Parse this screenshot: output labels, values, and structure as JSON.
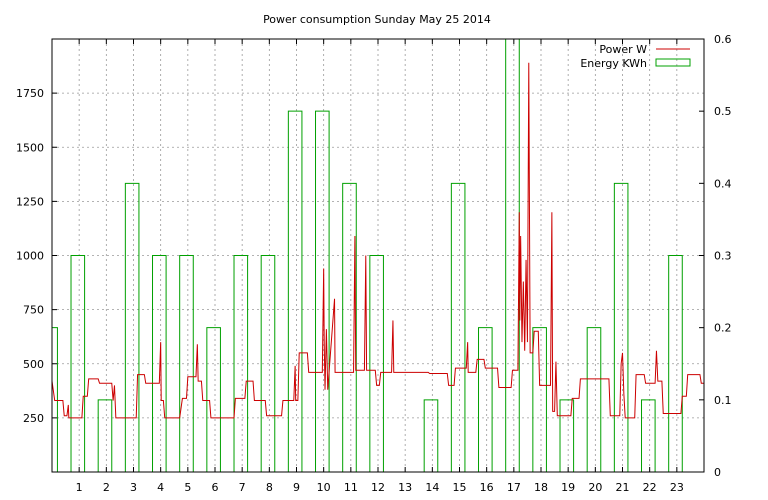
{
  "chart_data": {
    "type": "line",
    "title": "Power consumption Sunday May 25 2014",
    "xlabel": "",
    "ylabel": "",
    "xlim": [
      0,
      24
    ],
    "ylim": [
      0,
      2000
    ],
    "y2lim": [
      0,
      0.6
    ],
    "x_ticks": [
      1,
      2,
      3,
      4,
      5,
      6,
      7,
      8,
      9,
      10,
      11,
      12,
      13,
      14,
      15,
      16,
      17,
      18,
      19,
      20,
      21,
      22,
      23
    ],
    "y_ticks": [
      250,
      500,
      750,
      1000,
      1250,
      1500,
      1750
    ],
    "y2_ticks": [
      0,
      0.1,
      0.2,
      0.3,
      0.4,
      0.5,
      0.6
    ],
    "grid": true,
    "legend_position": "top-right",
    "series": [
      {
        "name": "Power W",
        "color": "#cc0000",
        "axis": "left",
        "style": "line",
        "points": [
          [
            0,
            420
          ],
          [
            0.1,
            330
          ],
          [
            0.4,
            330
          ],
          [
            0.45,
            260
          ],
          [
            0.55,
            260
          ],
          [
            0.6,
            310
          ],
          [
            0.62,
            250
          ],
          [
            1.1,
            250
          ],
          [
            1.15,
            350
          ],
          [
            1.3,
            350
          ],
          [
            1.35,
            430
          ],
          [
            1.7,
            430
          ],
          [
            1.75,
            410
          ],
          [
            2.2,
            410
          ],
          [
            2.25,
            330
          ],
          [
            2.3,
            400
          ],
          [
            2.35,
            250
          ],
          [
            3.1,
            250
          ],
          [
            3.15,
            450
          ],
          [
            3.4,
            450
          ],
          [
            3.45,
            410
          ],
          [
            3.95,
            410
          ],
          [
            4.0,
            600
          ],
          [
            4.02,
            330
          ],
          [
            4.1,
            330
          ],
          [
            4.15,
            250
          ],
          [
            4.7,
            250
          ],
          [
            4.8,
            340
          ],
          [
            4.95,
            340
          ],
          [
            5.0,
            440
          ],
          [
            5.3,
            440
          ],
          [
            5.35,
            590
          ],
          [
            5.38,
            420
          ],
          [
            5.5,
            420
          ],
          [
            5.55,
            330
          ],
          [
            5.8,
            330
          ],
          [
            5.85,
            250
          ],
          [
            6.7,
            250
          ],
          [
            6.75,
            340
          ],
          [
            7.1,
            340
          ],
          [
            7.15,
            420
          ],
          [
            7.4,
            420
          ],
          [
            7.45,
            330
          ],
          [
            7.85,
            330
          ],
          [
            7.9,
            260
          ],
          [
            8.45,
            260
          ],
          [
            8.5,
            330
          ],
          [
            8.9,
            330
          ],
          [
            8.95,
            490
          ],
          [
            8.97,
            330
          ],
          [
            9.05,
            330
          ],
          [
            9.1,
            550
          ],
          [
            9.4,
            550
          ],
          [
            9.45,
            460
          ],
          [
            9.95,
            460
          ],
          [
            10.0,
            940
          ],
          [
            10.02,
            600
          ],
          [
            10.05,
            380
          ],
          [
            10.1,
            660
          ],
          [
            10.15,
            380
          ],
          [
            10.4,
            800
          ],
          [
            10.42,
            460
          ],
          [
            11.1,
            460
          ],
          [
            11.15,
            1090
          ],
          [
            11.18,
            470
          ],
          [
            11.5,
            470
          ],
          [
            11.55,
            1000
          ],
          [
            11.58,
            470
          ],
          [
            11.9,
            470
          ],
          [
            11.95,
            400
          ],
          [
            12.05,
            400
          ],
          [
            12.1,
            460
          ],
          [
            12.5,
            460
          ],
          [
            12.55,
            700
          ],
          [
            12.58,
            460
          ],
          [
            13.85,
            460
          ],
          [
            13.9,
            455
          ],
          [
            14.55,
            455
          ],
          [
            14.6,
            400
          ],
          [
            14.8,
            400
          ],
          [
            14.85,
            480
          ],
          [
            15.25,
            480
          ],
          [
            15.3,
            600
          ],
          [
            15.32,
            460
          ],
          [
            15.6,
            460
          ],
          [
            15.65,
            520
          ],
          [
            15.9,
            520
          ],
          [
            15.95,
            480
          ],
          [
            16.4,
            480
          ],
          [
            16.45,
            390
          ],
          [
            16.9,
            390
          ],
          [
            16.95,
            470
          ],
          [
            17.15,
            470
          ],
          [
            17.2,
            1200
          ],
          [
            17.22,
            700
          ],
          [
            17.25,
            1090
          ],
          [
            17.3,
            600
          ],
          [
            17.35,
            880
          ],
          [
            17.4,
            560
          ],
          [
            17.45,
            980
          ],
          [
            17.5,
            600
          ],
          [
            17.55,
            1890
          ],
          [
            17.6,
            550
          ],
          [
            17.7,
            550
          ],
          [
            17.75,
            650
          ],
          [
            17.9,
            650
          ],
          [
            17.95,
            400
          ],
          [
            18.35,
            400
          ],
          [
            18.4,
            1200
          ],
          [
            18.43,
            280
          ],
          [
            18.5,
            280
          ],
          [
            18.55,
            510
          ],
          [
            18.6,
            260
          ],
          [
            19.1,
            260
          ],
          [
            19.15,
            340
          ],
          [
            19.4,
            340
          ],
          [
            19.45,
            430
          ],
          [
            20.5,
            430
          ],
          [
            20.55,
            260
          ],
          [
            20.9,
            260
          ],
          [
            20.95,
            500
          ],
          [
            21.0,
            550
          ],
          [
            21.05,
            360
          ],
          [
            21.1,
            250
          ],
          [
            21.45,
            250
          ],
          [
            21.5,
            450
          ],
          [
            21.8,
            450
          ],
          [
            21.85,
            410
          ],
          [
            22.2,
            410
          ],
          [
            22.25,
            560
          ],
          [
            22.3,
            420
          ],
          [
            22.45,
            420
          ],
          [
            22.5,
            270
          ],
          [
            23.15,
            270
          ],
          [
            23.2,
            350
          ],
          [
            23.35,
            350
          ],
          [
            23.4,
            450
          ],
          [
            23.85,
            450
          ],
          [
            23.9,
            410
          ],
          [
            24,
            410
          ]
        ]
      },
      {
        "name": "Energy KWh",
        "color": "#00a000",
        "axis": "right",
        "style": "steps",
        "bars": [
          {
            "x0": 0.0,
            "x1": 0.2,
            "v": 0.2
          },
          {
            "x0": 0.7,
            "x1": 1.2,
            "v": 0.3
          },
          {
            "x0": 1.7,
            "x1": 2.2,
            "v": 0.1
          },
          {
            "x0": 2.7,
            "x1": 3.2,
            "v": 0.4
          },
          {
            "x0": 3.7,
            "x1": 4.2,
            "v": 0.3
          },
          {
            "x0": 4.7,
            "x1": 5.2,
            "v": 0.3
          },
          {
            "x0": 5.7,
            "x1": 6.2,
            "v": 0.2
          },
          {
            "x0": 6.7,
            "x1": 7.2,
            "v": 0.3
          },
          {
            "x0": 7.7,
            "x1": 8.2,
            "v": 0.3
          },
          {
            "x0": 8.7,
            "x1": 9.2,
            "v": 0.5
          },
          {
            "x0": 9.7,
            "x1": 10.2,
            "v": 0.5
          },
          {
            "x0": 10.7,
            "x1": 11.2,
            "v": 0.4
          },
          {
            "x0": 11.7,
            "x1": 12.2,
            "v": 0.3
          },
          {
            "x0": 13.7,
            "x1": 14.2,
            "v": 0.1
          },
          {
            "x0": 14.7,
            "x1": 15.2,
            "v": 0.4
          },
          {
            "x0": 15.7,
            "x1": 16.2,
            "v": 0.2
          },
          {
            "x0": 16.7,
            "x1": 17.2,
            "v": 0.6
          },
          {
            "x0": 17.7,
            "x1": 18.2,
            "v": 0.2
          },
          {
            "x0": 18.7,
            "x1": 19.2,
            "v": 0.1
          },
          {
            "x0": 19.7,
            "x1": 20.2,
            "v": 0.2
          },
          {
            "x0": 20.7,
            "x1": 21.2,
            "v": 0.4
          },
          {
            "x0": 21.7,
            "x1": 22.2,
            "v": 0.1
          },
          {
            "x0": 22.7,
            "x1": 23.2,
            "v": 0.3
          }
        ]
      }
    ]
  }
}
